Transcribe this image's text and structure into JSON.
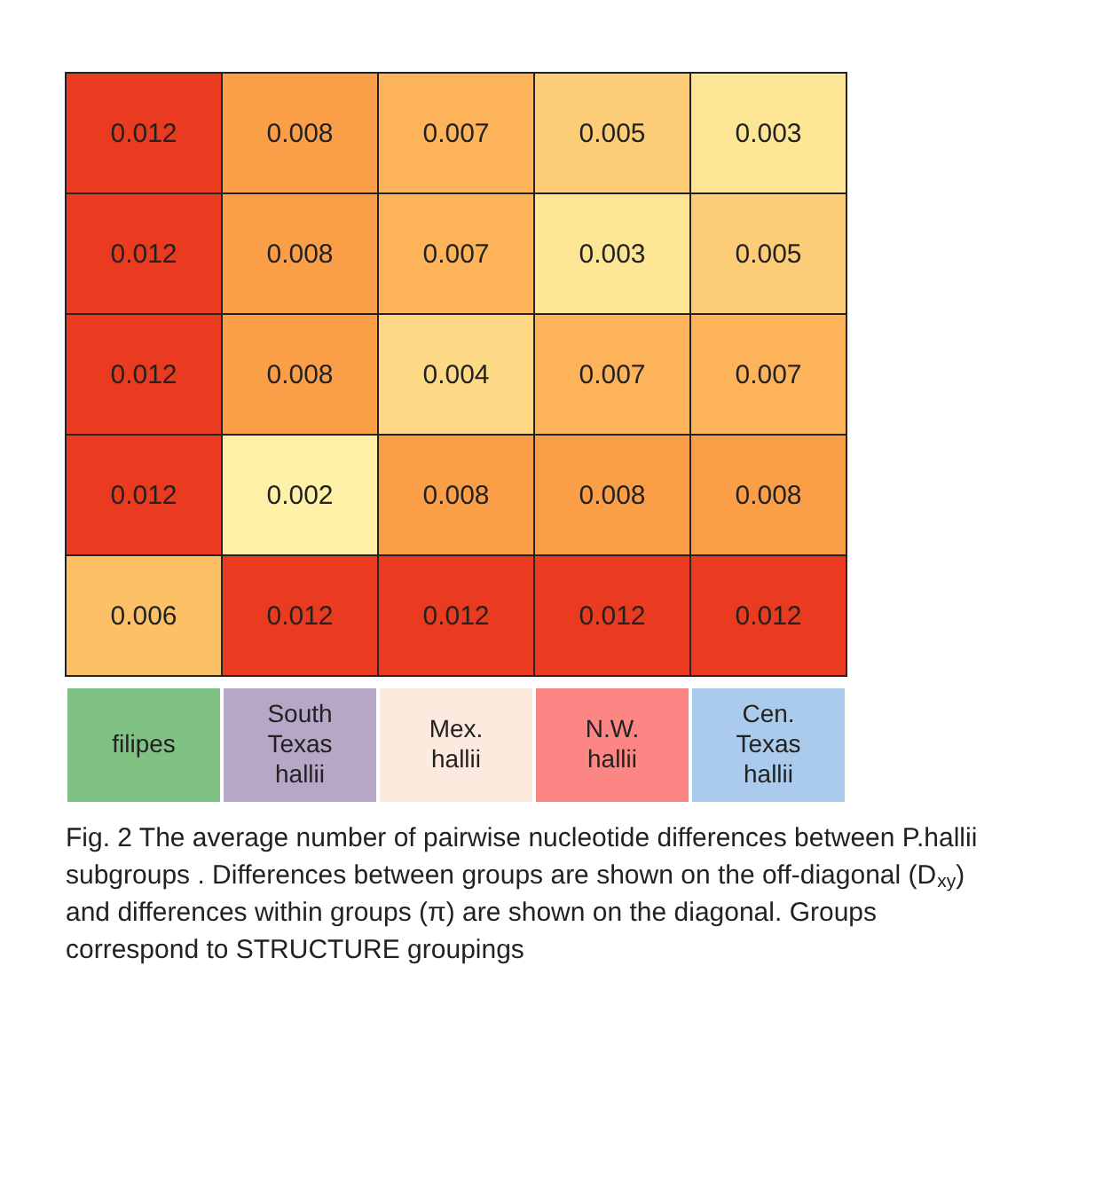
{
  "chart_data": {
    "type": "heatmap",
    "categories": [
      "filipes",
      "South Texas hallii",
      "Mex. hallii",
      "N.W. hallii",
      "Cen. Texas hallii"
    ],
    "y_categories": [
      null,
      null,
      null,
      null,
      null
    ],
    "cells": [
      [
        0.012,
        0.008,
        0.007,
        0.005,
        0.003
      ],
      [
        0.012,
        0.008,
        0.007,
        0.003,
        0.005
      ],
      [
        0.012,
        0.008,
        0.004,
        0.007,
        0.007
      ],
      [
        0.012,
        0.002,
        0.008,
        0.008,
        0.008
      ],
      [
        0.006,
        0.012,
        0.012,
        0.012,
        0.012
      ]
    ],
    "data_labels": true,
    "annotations": [
      "Fig. 2 The average number of pairwise nucleotide differences between P.hallii subgroups . Differences between groups are shown on the off-diagonal (D$_{xy}$) and differences within groups (π) are shown on the diagonal. Groups correspond to STRUCTURE groupings"
    ]
  }
}
